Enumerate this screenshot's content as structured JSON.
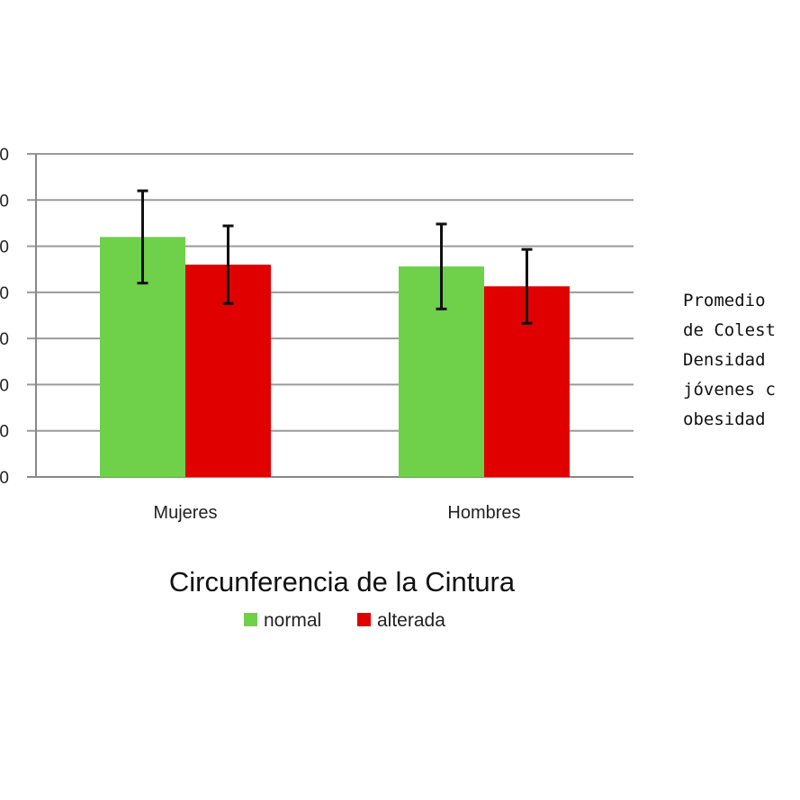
{
  "chart_data": {
    "type": "bar",
    "categories": [
      "Mujeres",
      "Hombres"
    ],
    "series": [
      {
        "name": "normal",
        "color": "#6fd04a",
        "values": [
          5.2,
          4.56
        ],
        "error": [
          1.0,
          0.92
        ]
      },
      {
        "name": "alterada",
        "color": "#e00000",
        "values": [
          4.6,
          4.13
        ],
        "error": [
          0.84,
          0.8
        ]
      }
    ],
    "ytick_labels": [
      "0",
      "0",
      "0",
      "0",
      "0",
      "0",
      "0",
      "0"
    ],
    "xlabel": "Circunferencia de la Cintura",
    "ylim": [
      0,
      7
    ],
    "grid": true,
    "legend_position": "bottom"
  },
  "side_note": {
    "lines": [
      "Promedio",
      "de Colest",
      "Densidad",
      "jóvenes c",
      "obesidad"
    ]
  }
}
